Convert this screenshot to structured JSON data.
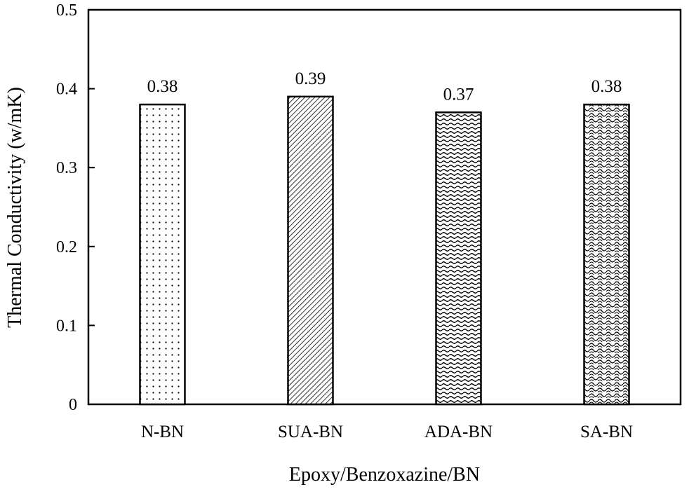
{
  "chart_data": {
    "type": "bar",
    "categories": [
      "N-BN",
      "SUA-BN",
      "ADA-BN",
      "SA-BN"
    ],
    "values": [
      0.38,
      0.39,
      0.37,
      0.38
    ],
    "value_labels": [
      "0.38",
      "0.39",
      "0.37",
      "0.38"
    ],
    "patterns": [
      "dots",
      "diagonal-dense",
      "wave-dense",
      "wave-zigzag"
    ],
    "xlabel": "Epoxy/Benzoxazine/BN",
    "ylabel": "Thermal Conductivity (w/mK)",
    "ylim": [
      0,
      0.5
    ],
    "yticks": [
      "0",
      "0.1",
      "0.2",
      "0.3",
      "0.4",
      "0.5"
    ],
    "grid": false,
    "legend": "none",
    "bar_fill": "#ffffff",
    "bar_stroke": "#000000"
  }
}
